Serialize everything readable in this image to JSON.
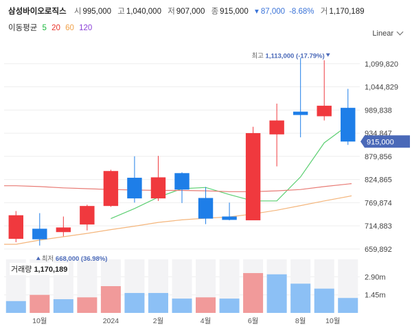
{
  "header": {
    "name": "삼성바이오로직스",
    "open_label": "시",
    "open": "995,000",
    "high_label": "고",
    "high": "1,040,000",
    "low_label": "저",
    "low": "907,000",
    "close_label": "종",
    "close": "915,000",
    "change": "▾ 87,000",
    "change_pct": "-8.68%",
    "volume_label": "거",
    "volume": "1,170,189"
  },
  "ma_legend": {
    "title": "이동평균",
    "periods": [
      {
        "label": "5",
        "color": "#19b83c"
      },
      {
        "label": "20",
        "color": "#e8332b"
      },
      {
        "label": "60",
        "color": "#f0a14a"
      },
      {
        "label": "120",
        "color": "#8a3fd8"
      }
    ]
  },
  "scale_button": "Linear",
  "volume_panel": {
    "title": "거래량",
    "value": "1,170,189"
  },
  "colors": {
    "up": "#f0393e",
    "down": "#1e7ee8",
    "up_vol": "#f19a9a",
    "down_vol": "#8cc0f5",
    "ma5": "#5ccf72",
    "ma20": "#e87a74",
    "ma60": "#f4b57b",
    "badge": "#4a69b8"
  },
  "chart_data": [
    {
      "type": "candlestick",
      "y_ticks": [
        {
          "value": 1099820,
          "label": "1,099,820"
        },
        {
          "value": 1044829,
          "label": "1,044,829"
        },
        {
          "value": 989838,
          "label": "989,838"
        },
        {
          "value": 934847,
          "label": "934,847"
        },
        {
          "value": 879856,
          "label": "879,856"
        },
        {
          "value": 824865,
          "label": "824,865"
        },
        {
          "value": 769874,
          "label": "769,874"
        },
        {
          "value": 714883,
          "label": "714,883"
        },
        {
          "value": 659892,
          "label": "659,892"
        }
      ],
      "ylim": [
        645000,
        1150000
      ],
      "x_ticks": [
        "10월",
        "2024",
        "2월",
        "4월",
        "6월",
        "8월",
        "10월"
      ],
      "candles": [
        {
          "open": 684000,
          "high": 750000,
          "low": 676000,
          "close": 740000
        },
        {
          "open": 708000,
          "high": 745000,
          "low": 668000,
          "close": 683000
        },
        {
          "open": 700000,
          "high": 737000,
          "low": 690000,
          "close": 711000
        },
        {
          "open": 718000,
          "high": 765000,
          "low": 704000,
          "close": 762000
        },
        {
          "open": 762000,
          "high": 848000,
          "low": 760000,
          "close": 845000
        },
        {
          "open": 829000,
          "high": 880000,
          "low": 770000,
          "close": 780000
        },
        {
          "open": 780000,
          "high": 881000,
          "low": 774000,
          "close": 830000
        },
        {
          "open": 840000,
          "high": 842000,
          "low": 769000,
          "close": 801000
        },
        {
          "open": 781000,
          "high": 807000,
          "low": 719000,
          "close": 732000
        },
        {
          "open": 737000,
          "high": 770000,
          "low": 728000,
          "close": 729000
        },
        {
          "open": 728000,
          "high": 950000,
          "low": 728000,
          "close": 935000
        },
        {
          "open": 932000,
          "high": 1005000,
          "low": 856000,
          "close": 965000
        },
        {
          "open": 986000,
          "high": 1113000,
          "low": 925000,
          "close": 978000
        },
        {
          "open": 975000,
          "high": 1108000,
          "low": 965000,
          "close": 1000000
        },
        {
          "open": 995000,
          "high": 1040000,
          "low": 907000,
          "close": 915000
        }
      ],
      "ma_lines": [
        {
          "period": "5",
          "values": [
            null,
            null,
            null,
            null,
            732000,
            756000,
            783000,
            803000,
            806000,
            789000,
            774000,
            774000,
            831000,
            912000,
            960000
          ]
        },
        {
          "period": "20",
          "values": [
            810000,
            808000,
            805000,
            803000,
            801000,
            800000,
            799000,
            799000,
            798000,
            796000,
            796000,
            798000,
            801000,
            808000,
            815000
          ]
        },
        {
          "period": "60",
          "values": [
            671000,
            681000,
            689000,
            697000,
            706000,
            714000,
            723000,
            729000,
            733000,
            736000,
            743000,
            752000,
            763000,
            774000,
            786000
          ]
        }
      ],
      "annotations": [
        {
          "label": "최고",
          "value": "1,113,000 (-17.79%)",
          "candle": 12,
          "price": 1113000
        },
        {
          "label": "최저",
          "value": "668,000 (36.98%)",
          "candle": 1,
          "price": 668000
        }
      ],
      "last_price_badge": "915,000"
    },
    {
      "type": "bar",
      "title": "거래량",
      "y_ticks": [
        {
          "value": 2900000,
          "label": "2.90m"
        },
        {
          "value": 1450000,
          "label": "1.45m"
        }
      ],
      "ylim": [
        0,
        4300000
      ],
      "values": [
        0.95,
        1.45,
        1.1,
        1.25,
        2.15,
        1.6,
        1.6,
        1.15,
        1.25,
        1.15,
        3.2,
        3.1,
        2.35,
        1.95,
        1.2
      ],
      "units": "millions",
      "direction": [
        "down",
        "up",
        "down",
        "up",
        "up",
        "down",
        "down",
        "down",
        "up",
        "down",
        "up",
        "down",
        "down",
        "down",
        "down"
      ]
    }
  ]
}
